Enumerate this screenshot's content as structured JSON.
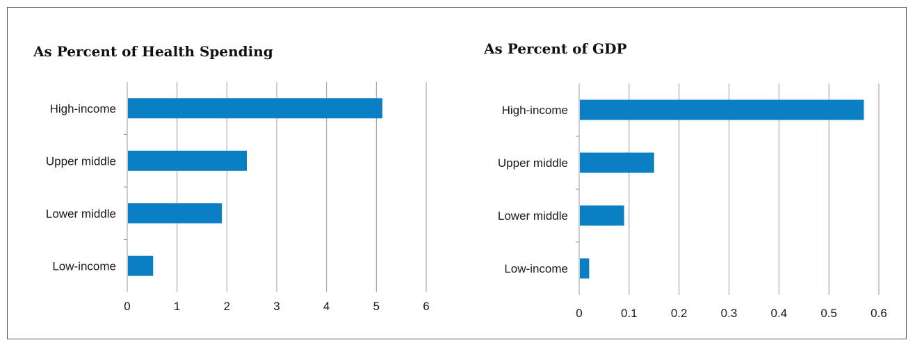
{
  "chart_data": [
    {
      "type": "bar",
      "orientation": "horizontal",
      "title": "As Percent of Health Spending",
      "categories": [
        "High-income",
        "Upper middle",
        "Lower middle",
        "Low-income"
      ],
      "values": [
        5.12,
        2.4,
        1.9,
        0.52
      ],
      "x_ticks": [
        "0",
        "1",
        "2",
        "3",
        "4",
        "5",
        "6"
      ],
      "xlim": [
        0,
        6
      ],
      "grid": "vertical",
      "legend": "none",
      "bar_color": "#0a7fc4"
    },
    {
      "type": "bar",
      "orientation": "horizontal",
      "title": "As Percent of GDP",
      "categories": [
        "High-income",
        "Upper middle",
        "Lower middle",
        "Low-income"
      ],
      "values": [
        0.57,
        0.15,
        0.09,
        0.02
      ],
      "x_ticks": [
        "0",
        "0.1",
        "0.2",
        "0.3",
        "0.4",
        "0.5",
        "0.6"
      ],
      "xlim": [
        0,
        0.6
      ],
      "grid": "vertical",
      "legend": "none",
      "bar_color": "#0a7fc4"
    }
  ]
}
